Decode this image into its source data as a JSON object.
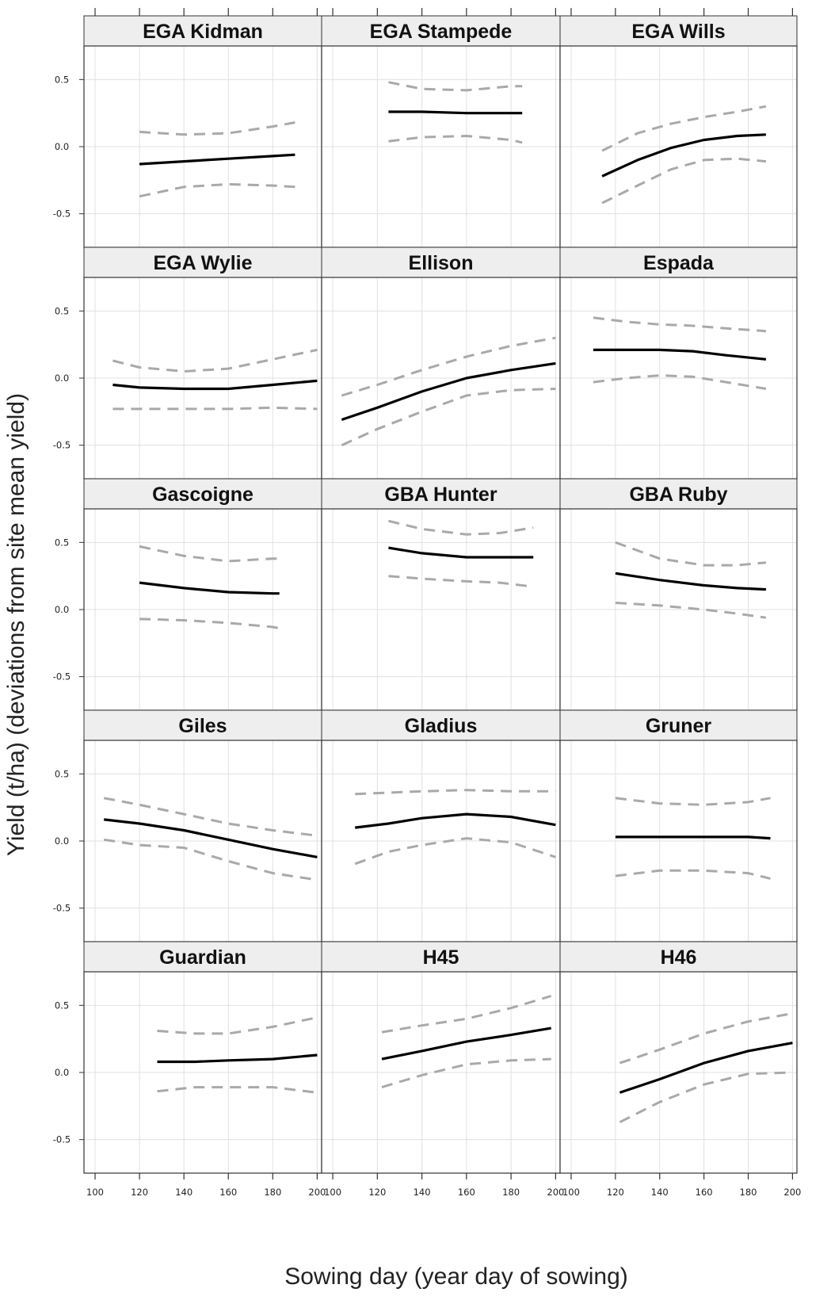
{
  "chart_data": {
    "type": "line",
    "xlabel": "Sowing day (year day of sowing)",
    "ylabel": "Yield (t/ha) (deviations from site mean yield)",
    "xlim": [
      95,
      202
    ],
    "ylim": [
      -0.75,
      0.75
    ],
    "x_ticks": [
      100,
      120,
      140,
      160,
      180,
      200
    ],
    "y_ticks": [
      -0.5,
      0.0,
      0.5
    ],
    "y_tick_labels": [
      "-0.5",
      "0.0",
      "0.5"
    ],
    "grid": true,
    "layout": {
      "rows": 5,
      "cols": 3
    },
    "series_styles": {
      "fit": {
        "color": "#000000",
        "dash": "solid"
      },
      "ci": {
        "color": "#a9a9a9",
        "dash": "dashed"
      }
    },
    "panels": [
      {
        "name": "EGA Kidman",
        "x": [
          120,
          140,
          160,
          180,
          190
        ],
        "fit": [
          -0.13,
          -0.11,
          -0.09,
          -0.07,
          -0.06
        ],
        "upper": [
          0.11,
          0.09,
          0.1,
          0.15,
          0.18
        ],
        "lower": [
          -0.37,
          -0.3,
          -0.28,
          -0.29,
          -0.3
        ]
      },
      {
        "name": "EGA Stampede",
        "x": [
          125,
          140,
          160,
          180,
          185
        ],
        "fit": [
          0.26,
          0.26,
          0.25,
          0.25,
          0.25
        ],
        "upper": [
          0.48,
          0.43,
          0.42,
          0.45,
          0.45
        ],
        "lower": [
          0.04,
          0.07,
          0.08,
          0.05,
          0.03
        ]
      },
      {
        "name": "EGA Wills",
        "x": [
          114,
          130,
          145,
          160,
          175,
          188
        ],
        "fit": [
          -0.22,
          -0.1,
          -0.01,
          0.05,
          0.08,
          0.09
        ],
        "upper": [
          -0.03,
          0.1,
          0.17,
          0.22,
          0.26,
          0.3
        ],
        "lower": [
          -0.42,
          -0.29,
          -0.17,
          -0.1,
          -0.09,
          -0.11
        ]
      },
      {
        "name": "EGA Wylie",
        "x": [
          108,
          120,
          140,
          160,
          180,
          200
        ],
        "fit": [
          -0.05,
          -0.07,
          -0.08,
          -0.08,
          -0.05,
          -0.02
        ],
        "upper": [
          0.13,
          0.08,
          0.05,
          0.07,
          0.14,
          0.21
        ],
        "lower": [
          -0.23,
          -0.23,
          -0.23,
          -0.23,
          -0.22,
          -0.23
        ]
      },
      {
        "name": "Ellison",
        "x": [
          104,
          120,
          140,
          160,
          180,
          200
        ],
        "fit": [
          -0.31,
          -0.22,
          -0.1,
          0.0,
          0.06,
          0.11
        ],
        "upper": [
          -0.13,
          -0.05,
          0.06,
          0.16,
          0.24,
          0.3
        ],
        "lower": [
          -0.5,
          -0.38,
          -0.25,
          -0.13,
          -0.09,
          -0.08
        ]
      },
      {
        "name": "Espada",
        "x": [
          110,
          125,
          140,
          155,
          170,
          188
        ],
        "fit": [
          0.21,
          0.21,
          0.21,
          0.2,
          0.17,
          0.14
        ],
        "upper": [
          0.45,
          0.42,
          0.4,
          0.39,
          0.37,
          0.35
        ],
        "lower": [
          -0.03,
          0.0,
          0.02,
          0.01,
          -0.03,
          -0.08
        ]
      },
      {
        "name": "Gascoigne",
        "x": [
          120,
          140,
          160,
          180,
          183
        ],
        "fit": [
          0.2,
          0.16,
          0.13,
          0.12,
          0.12
        ],
        "upper": [
          0.47,
          0.4,
          0.36,
          0.38,
          0.38
        ],
        "lower": [
          -0.07,
          -0.08,
          -0.1,
          -0.13,
          -0.14
        ]
      },
      {
        "name": "GBA Hunter",
        "x": [
          125,
          140,
          160,
          175,
          190
        ],
        "fit": [
          0.46,
          0.42,
          0.39,
          0.39,
          0.39
        ],
        "upper": [
          0.66,
          0.6,
          0.56,
          0.57,
          0.61
        ],
        "lower": [
          0.25,
          0.23,
          0.21,
          0.2,
          0.17
        ]
      },
      {
        "name": "GBA Ruby",
        "x": [
          120,
          140,
          160,
          175,
          188
        ],
        "fit": [
          0.27,
          0.22,
          0.18,
          0.16,
          0.15
        ],
        "upper": [
          0.5,
          0.38,
          0.33,
          0.33,
          0.35
        ],
        "lower": [
          0.05,
          0.03,
          0.0,
          -0.03,
          -0.06
        ]
      },
      {
        "name": "Giles",
        "x": [
          104,
          120,
          140,
          160,
          180,
          200
        ],
        "fit": [
          0.16,
          0.13,
          0.08,
          0.01,
          -0.06,
          -0.12
        ],
        "upper": [
          0.32,
          0.27,
          0.2,
          0.13,
          0.08,
          0.04
        ],
        "lower": [
          0.01,
          -0.03,
          -0.05,
          -0.15,
          -0.24,
          -0.29
        ]
      },
      {
        "name": "Gladius",
        "x": [
          110,
          125,
          140,
          160,
          180,
          200
        ],
        "fit": [
          0.1,
          0.13,
          0.17,
          0.2,
          0.18,
          0.12
        ],
        "upper": [
          0.35,
          0.36,
          0.37,
          0.38,
          0.37,
          0.37
        ],
        "lower": [
          -0.17,
          -0.08,
          -0.03,
          0.02,
          -0.01,
          -0.12
        ]
      },
      {
        "name": "Gruner",
        "x": [
          120,
          140,
          160,
          180,
          190
        ],
        "fit": [
          0.03,
          0.03,
          0.03,
          0.03,
          0.02
        ],
        "upper": [
          0.32,
          0.28,
          0.27,
          0.29,
          0.32
        ],
        "lower": [
          -0.26,
          -0.22,
          -0.22,
          -0.24,
          -0.28
        ]
      },
      {
        "name": "Guardian",
        "x": [
          128,
          145,
          160,
          180,
          200
        ],
        "fit": [
          0.08,
          0.08,
          0.09,
          0.1,
          0.13
        ],
        "upper": [
          0.31,
          0.29,
          0.29,
          0.34,
          0.41
        ],
        "lower": [
          -0.14,
          -0.11,
          -0.11,
          -0.11,
          -0.15
        ]
      },
      {
        "name": "H45",
        "x": [
          122,
          140,
          160,
          180,
          198
        ],
        "fit": [
          0.1,
          0.16,
          0.23,
          0.28,
          0.33
        ],
        "upper": [
          0.3,
          0.35,
          0.4,
          0.48,
          0.57
        ],
        "lower": [
          -0.11,
          -0.02,
          0.06,
          0.09,
          0.1
        ]
      },
      {
        "name": "H46",
        "x": [
          122,
          140,
          160,
          180,
          200
        ],
        "fit": [
          -0.15,
          -0.05,
          0.07,
          0.16,
          0.22
        ],
        "upper": [
          0.07,
          0.17,
          0.29,
          0.38,
          0.44
        ],
        "lower": [
          -0.37,
          -0.22,
          -0.09,
          -0.01,
          0.0
        ]
      }
    ]
  }
}
